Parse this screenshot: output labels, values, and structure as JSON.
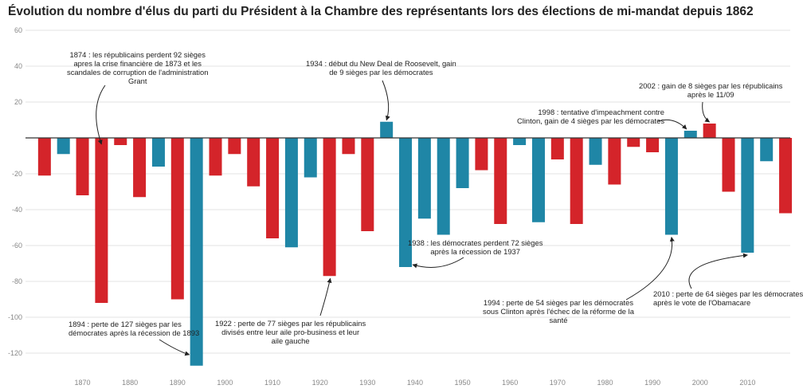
{
  "colors": {
    "dem": "#1f86a6",
    "rep": "#d4242a",
    "grid": "#e3e3e3",
    "zero": "#333333"
  },
  "chart_data": {
    "type": "bar",
    "title": "Évolution du nombre d'élus du parti du Président à la Chambre des représentants lors des élections de mi-mandat depuis 1862",
    "xlabel": "",
    "ylabel": "",
    "ylim": [
      -127,
      60
    ],
    "xlim": [
      1858,
      2019
    ],
    "yticks": [
      60,
      40,
      20,
      -20,
      -40,
      -60,
      -80,
      -100,
      -120
    ],
    "xticks": [
      1870,
      1880,
      1890,
      1900,
      1910,
      1920,
      1930,
      1940,
      1950,
      1960,
      1970,
      1980,
      1990,
      2000,
      2010
    ],
    "bars": [
      {
        "year": 1862,
        "value": -21,
        "party": "rep"
      },
      {
        "year": 1866,
        "value": -9,
        "party": "dem"
      },
      {
        "year": 1870,
        "value": -32,
        "party": "rep"
      },
      {
        "year": 1874,
        "value": -92,
        "party": "rep"
      },
      {
        "year": 1878,
        "value": -4,
        "party": "rep"
      },
      {
        "year": 1882,
        "value": -33,
        "party": "rep"
      },
      {
        "year": 1886,
        "value": -16,
        "party": "dem"
      },
      {
        "year": 1890,
        "value": -90,
        "party": "rep"
      },
      {
        "year": 1894,
        "value": -127,
        "party": "dem"
      },
      {
        "year": 1898,
        "value": -21,
        "party": "rep"
      },
      {
        "year": 1902,
        "value": -9,
        "party": "rep"
      },
      {
        "year": 1906,
        "value": -27,
        "party": "rep"
      },
      {
        "year": 1910,
        "value": -56,
        "party": "rep"
      },
      {
        "year": 1914,
        "value": -61,
        "party": "dem"
      },
      {
        "year": 1918,
        "value": -22,
        "party": "dem"
      },
      {
        "year": 1922,
        "value": -77,
        "party": "rep"
      },
      {
        "year": 1926,
        "value": -9,
        "party": "rep"
      },
      {
        "year": 1930,
        "value": -52,
        "party": "rep"
      },
      {
        "year": 1934,
        "value": 9,
        "party": "dem"
      },
      {
        "year": 1938,
        "value": -72,
        "party": "dem"
      },
      {
        "year": 1942,
        "value": -45,
        "party": "dem"
      },
      {
        "year": 1946,
        "value": -54,
        "party": "dem"
      },
      {
        "year": 1950,
        "value": -28,
        "party": "dem"
      },
      {
        "year": 1954,
        "value": -18,
        "party": "rep"
      },
      {
        "year": 1958,
        "value": -48,
        "party": "rep"
      },
      {
        "year": 1962,
        "value": -4,
        "party": "dem"
      },
      {
        "year": 1966,
        "value": -47,
        "party": "dem"
      },
      {
        "year": 1970,
        "value": -12,
        "party": "rep"
      },
      {
        "year": 1974,
        "value": -48,
        "party": "rep"
      },
      {
        "year": 1978,
        "value": -15,
        "party": "dem"
      },
      {
        "year": 1982,
        "value": -26,
        "party": "rep"
      },
      {
        "year": 1986,
        "value": -5,
        "party": "rep"
      },
      {
        "year": 1990,
        "value": -8,
        "party": "rep"
      },
      {
        "year": 1994,
        "value": -54,
        "party": "dem"
      },
      {
        "year": 1998,
        "value": 4,
        "party": "dem"
      },
      {
        "year": 2002,
        "value": 8,
        "party": "rep"
      },
      {
        "year": 2006,
        "value": -30,
        "party": "rep"
      },
      {
        "year": 2010,
        "value": -64,
        "party": "dem"
      },
      {
        "year": 2014,
        "value": -13,
        "party": "dem"
      },
      {
        "year": 2018,
        "value": -42,
        "party": "rep"
      }
    ],
    "annotations": [
      {
        "year": 1874,
        "text": "1874 : les républicains perdent 92 sièges\napres la crise financière de 1873 et les\nscandales de corruption de l'administration\nGrant"
      },
      {
        "year": 1894,
        "text": "1894 : perte de 127 sièges par les\ndémocrates après la récession de 1893"
      },
      {
        "year": 1922,
        "text": "1922 : perte de 77 sièges par les républicains\ndivisés entre leur aile pro-business et leur\naile gauche"
      },
      {
        "year": 1934,
        "text": "1934 : début du New Deal de Roosevelt, gain\nde 9 sièges par les démocrates"
      },
      {
        "year": 1938,
        "text": "1938 : les démocrates perdent 72 sièges\naprès la récession de 1937"
      },
      {
        "year": 1994,
        "text": "1994 : perte de 54 sièges par les démocrates\nsous Clinton après l'échec de la réforme de la\nsanté"
      },
      {
        "year": 1998,
        "text": "1998 : tentative d'impeachment contre\nClinton, gain de 4 sièges par les démocrates"
      },
      {
        "year": 2002,
        "text": "2002 : gain de 8 sièges par les républicains\naprès le 11/09"
      },
      {
        "year": 2010,
        "text": "2010 : perte de 64 sièges par les démocrates\naprès le vote de l'Obamacare"
      }
    ]
  }
}
